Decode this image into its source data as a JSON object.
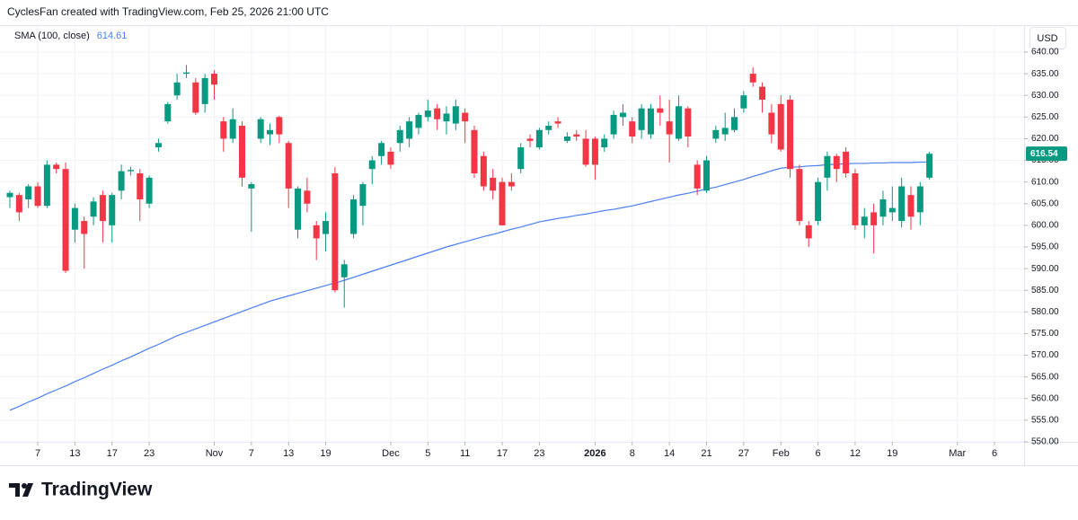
{
  "chart_data": {
    "type": "candlestick",
    "title": "CyclesFan created with TradingView.com, Feb 25, 2026 21:00 UTC",
    "currency": "USD",
    "brand": "TradingView",
    "up_color": "#089981",
    "down_color": "#f23645",
    "categories": [
      null,
      null,
      null,
      "7",
      null,
      null,
      null,
      "13",
      null,
      null,
      null,
      "17",
      null,
      null,
      null,
      "23",
      null,
      null,
      null,
      null,
      null,
      null,
      "Nov",
      null,
      null,
      null,
      "7",
      null,
      null,
      null,
      "13",
      null,
      null,
      null,
      "19",
      null,
      null,
      null,
      null,
      null,
      null,
      "Dec",
      null,
      null,
      null,
      "5",
      null,
      null,
      null,
      "11",
      null,
      null,
      null,
      "17",
      null,
      null,
      null,
      "23",
      null,
      null,
      null,
      null,
      null,
      "2026",
      null,
      null,
      null,
      "8",
      null,
      null,
      null,
      "14",
      null,
      null,
      null,
      "21",
      null,
      null,
      null,
      "27",
      null,
      null,
      null,
      "Feb",
      null,
      null,
      null,
      "6",
      null,
      null,
      null,
      "12",
      null,
      null,
      null,
      "19",
      null,
      null,
      null,
      null,
      null,
      null,
      "Mar",
      null,
      null,
      null,
      "6"
    ],
    "open": [
      606.5,
      607,
      606,
      609,
      604.5,
      614,
      613,
      599,
      601,
      602,
      607,
      600,
      608,
      612.5,
      612,
      605,
      618,
      624,
      630,
      635,
      633,
      628,
      635,
      624,
      620,
      623,
      608.5,
      620,
      621,
      625,
      619,
      599,
      608,
      600,
      598,
      612,
      588,
      598,
      604.5,
      613,
      616,
      617,
      619,
      620,
      622.5,
      625,
      627,
      624,
      623.5,
      626,
      622,
      616,
      611,
      610,
      610,
      613,
      620,
      618,
      622,
      624,
      619.5,
      621,
      620,
      620,
      618,
      621,
      625,
      624,
      622,
      621,
      627,
      624,
      620,
      627,
      614,
      608,
      620,
      621,
      622,
      627,
      635,
      632,
      626,
      628,
      629,
      613,
      600,
      601,
      611,
      616,
      617,
      612,
      600,
      603,
      602,
      603,
      601,
      607,
      603,
      611,
      null,
      null,
      null,
      null,
      null,
      null,
      null
    ],
    "high": [
      608,
      607.5,
      609.5,
      610,
      615,
      614.5,
      614.5,
      605,
      602,
      606.5,
      608,
      607.5,
      614,
      613.5,
      613,
      611.5,
      620,
      628.5,
      635,
      637,
      634,
      635,
      635.8,
      625,
      627,
      624,
      610,
      625,
      623.5,
      625.3,
      619.5,
      609,
      611,
      601,
      603,
      613.5,
      592,
      607,
      610,
      616,
      619.5,
      618,
      623,
      625,
      626,
      629,
      628,
      627.5,
      629,
      627,
      623,
      617,
      613,
      611,
      612,
      619,
      621,
      622.5,
      624,
      625,
      621.5,
      622,
      622,
      620.5,
      621,
      626.5,
      628,
      625,
      628,
      628,
      630,
      629,
      630,
      627.5,
      615,
      616,
      623,
      626,
      627,
      631,
      636.5,
      633,
      628,
      630,
      630,
      614,
      601,
      611,
      617,
      616.5,
      618,
      613,
      604,
      605,
      608,
      609,
      611,
      609,
      610,
      617,
      null,
      null,
      null,
      null,
      null,
      null,
      null
    ],
    "low": [
      604,
      601,
      604,
      604,
      604,
      612,
      589,
      596,
      590,
      600,
      596,
      596,
      606,
      611.5,
      601,
      604,
      617,
      623.5,
      629,
      634,
      625.5,
      626,
      629,
      617,
      619,
      609,
      598.5,
      619,
      618.5,
      619,
      604,
      597,
      603,
      592,
      594,
      584.5,
      581,
      597,
      600,
      609.5,
      614,
      613,
      617,
      618,
      621,
      624,
      622,
      621,
      622,
      619,
      611,
      608,
      606,
      600,
      608,
      612,
      618,
      617.5,
      621,
      622.5,
      619,
      619.5,
      613.5,
      610.5,
      617,
      620,
      623,
      619,
      620,
      620,
      623,
      614.5,
      619.5,
      618,
      607,
      607.5,
      619,
      619.5,
      621.5,
      626,
      632,
      626,
      619,
      617,
      611,
      600,
      595,
      600,
      608,
      610,
      611,
      599,
      597,
      593.5,
      600,
      601,
      599.5,
      599,
      600,
      610.5,
      null,
      null,
      null,
      null,
      null,
      null,
      null
    ],
    "close": [
      607.5,
      603,
      609,
      604.5,
      614,
      613,
      589.5,
      604,
      598,
      605.5,
      601,
      607,
      612.5,
      612.8,
      606,
      611,
      619,
      628,
      633,
      635.3,
      626,
      634,
      632.5,
      620,
      624.5,
      611,
      609.5,
      624.5,
      622,
      621,
      608.5,
      608.5,
      605,
      597,
      601,
      585,
      591,
      606,
      609.5,
      615,
      619,
      614,
      622,
      624,
      625.5,
      626.5,
      624.5,
      625.8,
      627.5,
      624,
      612,
      609,
      608,
      600,
      609,
      618,
      619.5,
      622,
      623,
      623.5,
      620.5,
      620.5,
      614,
      614,
      620,
      625.5,
      626,
      620.5,
      627,
      627,
      626,
      621,
      627.5,
      620.5,
      608.5,
      615,
      622,
      622.5,
      625,
      630,
      633,
      629,
      621,
      617.5,
      613,
      601,
      597,
      610,
      616,
      613,
      612,
      600,
      602,
      600,
      606,
      604,
      609,
      602,
      609,
      616.54,
      null,
      null,
      null,
      null,
      null,
      null,
      null
    ],
    "sma": {
      "name": "SMA (100, close)",
      "color": "#4a7ff0",
      "values": [
        557.3,
        558.2,
        559.2,
        560.1,
        561.1,
        562.0,
        562.9,
        563.9,
        564.8,
        565.8,
        566.8,
        567.7,
        568.7,
        569.6,
        570.6,
        571.6,
        572.5,
        573.5,
        574.5,
        575.3,
        576.1,
        576.9,
        577.7,
        578.5,
        579.3,
        580.1,
        580.9,
        581.7,
        582.5,
        583.1,
        583.7,
        584.3,
        584.9,
        585.5,
        586.1,
        586.7,
        587.3,
        588.0,
        588.7,
        589.4,
        590.1,
        590.8,
        591.5,
        592.2,
        592.9,
        593.6,
        594.3,
        595.0,
        595.6,
        596.2,
        596.8,
        597.4,
        597.9,
        598.5,
        599.1,
        599.6,
        600.2,
        600.8,
        601.2,
        601.6,
        601.9,
        602.3,
        602.6,
        603.0,
        603.4,
        603.7,
        604.1,
        604.5,
        605.0,
        605.5,
        606.0,
        606.5,
        607.0,
        607.4,
        607.9,
        608.4,
        608.8,
        609.4,
        610.0,
        610.6,
        611.3,
        611.9,
        612.6,
        613.2,
        613.4,
        613.5,
        613.7,
        613.8,
        614.0,
        614.1,
        614.2,
        614.3,
        614.3,
        614.4,
        614.4,
        614.5,
        614.5,
        614.5,
        614.6,
        614.61,
        null,
        null,
        null,
        null,
        null,
        null,
        null
      ]
    },
    "ylim": [
      550,
      640
    ],
    "yticks": [
      {
        "value": 550,
        "label": "550.00"
      },
      {
        "value": 555,
        "label": "555.00"
      },
      {
        "value": 560,
        "label": "560.00"
      },
      {
        "value": 565,
        "label": "565.00"
      },
      {
        "value": 570,
        "label": "570.00"
      },
      {
        "value": 575,
        "label": "575.00"
      },
      {
        "value": 580,
        "label": "580.00"
      },
      {
        "value": 585,
        "label": "585.00"
      },
      {
        "value": 590,
        "label": "590.00"
      },
      {
        "value": 595,
        "label": "595.00"
      },
      {
        "value": 600,
        "label": "600.00"
      },
      {
        "value": 605,
        "label": "605.00"
      },
      {
        "value": 610,
        "label": "610.00"
      },
      {
        "value": 615,
        "label": "615.00"
      },
      {
        "value": 620,
        "label": "620.00"
      },
      {
        "value": 625,
        "label": "625.00"
      },
      {
        "value": 630,
        "label": "630.00"
      },
      {
        "value": 635,
        "label": "635.00"
      },
      {
        "value": 640,
        "label": "640.00"
      }
    ],
    "grid": true
  }
}
